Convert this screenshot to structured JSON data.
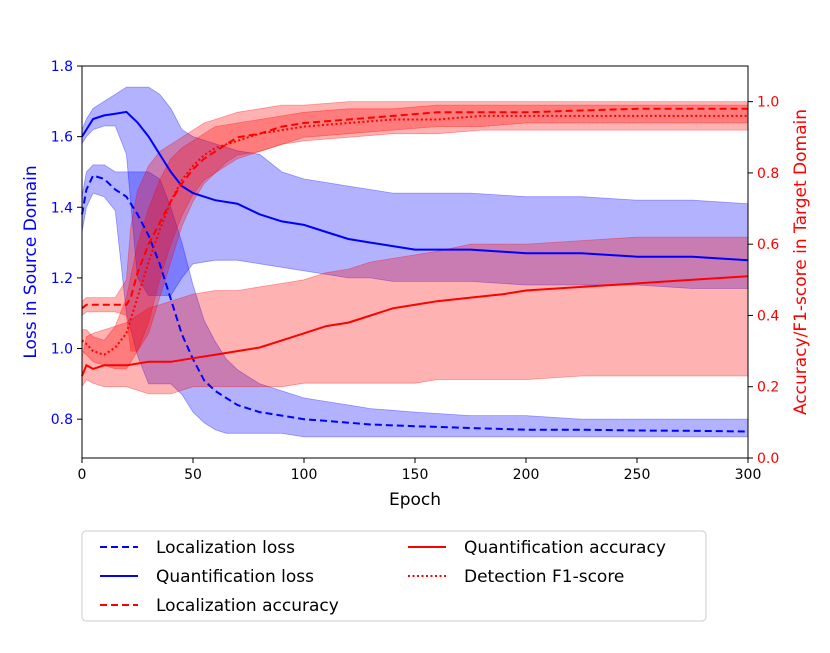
{
  "chart_data": {
    "type": "line",
    "xlabel": "Epoch",
    "ylabel_left": "Loss in Source Domain",
    "ylabel_right": "Accuracy/F1-score in Target Domain",
    "xlim": [
      0,
      300
    ],
    "ylim_left": [
      0.69,
      1.8
    ],
    "ylim_right": [
      0.0,
      1.1
    ],
    "x_ticks": [
      "0",
      "50",
      "100",
      "150",
      "200",
      "250",
      "300"
    ],
    "y_left_ticks": [
      "0.8",
      "1.0",
      "1.2",
      "1.4",
      "1.6",
      "1.8"
    ],
    "y_right_ticks": [
      "0.0",
      "0.2",
      "0.4",
      "0.6",
      "0.8",
      "1.0"
    ],
    "left_axis_color": "#0000ff",
    "right_axis_color": "#ff0000",
    "grid": false,
    "legend_position": "bottom (below plot), two columns",
    "series": [
      {
        "name": "Localization loss",
        "axis": "left",
        "color": "#0000ff",
        "style": "dashed",
        "x": [
          0,
          2,
          5,
          10,
          15,
          20,
          25,
          30,
          35,
          40,
          45,
          50,
          55,
          60,
          65,
          70,
          75,
          80,
          90,
          100,
          110,
          120,
          130,
          150,
          175,
          200,
          225,
          250,
          275,
          300
        ],
        "y": [
          1.38,
          1.45,
          1.49,
          1.48,
          1.45,
          1.43,
          1.38,
          1.32,
          1.24,
          1.14,
          1.04,
          0.97,
          0.91,
          0.88,
          0.86,
          0.84,
          0.83,
          0.82,
          0.81,
          0.8,
          0.795,
          0.79,
          0.785,
          0.78,
          0.775,
          0.77,
          0.77,
          0.768,
          0.767,
          0.765
        ],
        "band_low": [
          1.33,
          1.4,
          1.44,
          1.43,
          1.39,
          1.1,
          0.98,
          0.9,
          0.9,
          0.9,
          0.87,
          0.82,
          0.79,
          0.77,
          0.76,
          0.76,
          0.76,
          0.76,
          0.76,
          0.75,
          0.75,
          0.75,
          0.75,
          0.75,
          0.75,
          0.75,
          0.75,
          0.75,
          0.75,
          0.75
        ],
        "band_high": [
          1.43,
          1.5,
          1.52,
          1.52,
          1.5,
          1.5,
          1.5,
          1.5,
          1.48,
          1.4,
          1.3,
          1.18,
          1.08,
          1.02,
          0.97,
          0.94,
          0.92,
          0.9,
          0.88,
          0.86,
          0.85,
          0.84,
          0.83,
          0.82,
          0.81,
          0.81,
          0.8,
          0.8,
          0.8,
          0.8
        ]
      },
      {
        "name": "Quantification loss",
        "axis": "left",
        "color": "#0000ff",
        "style": "solid",
        "x": [
          0,
          2,
          5,
          10,
          15,
          20,
          25,
          30,
          35,
          40,
          45,
          50,
          60,
          70,
          80,
          90,
          100,
          110,
          120,
          130,
          140,
          150,
          175,
          200,
          225,
          250,
          275,
          300
        ],
        "y": [
          1.6,
          1.62,
          1.65,
          1.66,
          1.665,
          1.67,
          1.64,
          1.6,
          1.55,
          1.5,
          1.46,
          1.44,
          1.42,
          1.41,
          1.38,
          1.36,
          1.35,
          1.33,
          1.31,
          1.3,
          1.29,
          1.28,
          1.28,
          1.27,
          1.27,
          1.26,
          1.26,
          1.25
        ],
        "band_low": [
          1.58,
          1.6,
          1.62,
          1.63,
          1.63,
          1.55,
          1.2,
          1.15,
          1.15,
          1.15,
          1.2,
          1.24,
          1.25,
          1.25,
          1.24,
          1.23,
          1.22,
          1.21,
          1.2,
          1.2,
          1.19,
          1.19,
          1.19,
          1.18,
          1.18,
          1.18,
          1.17,
          1.17
        ],
        "band_high": [
          1.62,
          1.65,
          1.68,
          1.7,
          1.72,
          1.74,
          1.74,
          1.74,
          1.72,
          1.68,
          1.62,
          1.6,
          1.58,
          1.56,
          1.55,
          1.5,
          1.48,
          1.47,
          1.46,
          1.45,
          1.44,
          1.44,
          1.44,
          1.43,
          1.43,
          1.42,
          1.42,
          1.41
        ]
      },
      {
        "name": "Localization accuracy",
        "axis": "right",
        "color": "#ff0000",
        "style": "dashed",
        "x": [
          0,
          2,
          5,
          10,
          15,
          20,
          22,
          25,
          30,
          35,
          40,
          45,
          50,
          55,
          60,
          65,
          70,
          80,
          90,
          100,
          120,
          140,
          160,
          180,
          200,
          225,
          250,
          275,
          300
        ],
        "y": [
          0.42,
          0.43,
          0.43,
          0.43,
          0.43,
          0.43,
          0.45,
          0.52,
          0.6,
          0.66,
          0.72,
          0.77,
          0.81,
          0.84,
          0.86,
          0.88,
          0.9,
          0.91,
          0.93,
          0.94,
          0.95,
          0.96,
          0.97,
          0.97,
          0.97,
          0.975,
          0.98,
          0.98,
          0.98
        ],
        "band_low": [
          0.4,
          0.41,
          0.41,
          0.41,
          0.41,
          0.4,
          0.3,
          0.3,
          0.35,
          0.45,
          0.55,
          0.65,
          0.72,
          0.77,
          0.8,
          0.83,
          0.85,
          0.86,
          0.88,
          0.9,
          0.91,
          0.92,
          0.93,
          0.93,
          0.94,
          0.94,
          0.94,
          0.94,
          0.94
        ],
        "band_high": [
          0.44,
          0.45,
          0.45,
          0.45,
          0.45,
          0.5,
          0.65,
          0.75,
          0.82,
          0.86,
          0.88,
          0.9,
          0.92,
          0.94,
          0.95,
          0.96,
          0.97,
          0.98,
          0.99,
          0.99,
          1.0,
          1.0,
          1.0,
          1.0,
          1.0,
          1.0,
          1.0,
          1.0,
          1.0
        ]
      },
      {
        "name": "Quantification accuracy",
        "axis": "right",
        "color": "#ff0000",
        "style": "solid",
        "x": [
          0,
          2,
          5,
          10,
          20,
          30,
          40,
          50,
          60,
          70,
          80,
          90,
          100,
          110,
          120,
          130,
          140,
          150,
          160,
          175,
          190,
          200,
          225,
          250,
          275,
          300
        ],
        "y": [
          0.23,
          0.26,
          0.25,
          0.26,
          0.26,
          0.27,
          0.27,
          0.28,
          0.29,
          0.3,
          0.31,
          0.33,
          0.35,
          0.37,
          0.38,
          0.4,
          0.42,
          0.43,
          0.44,
          0.45,
          0.46,
          0.47,
          0.48,
          0.49,
          0.5,
          0.51
        ],
        "band_low": [
          0.2,
          0.22,
          0.21,
          0.2,
          0.2,
          0.18,
          0.18,
          0.2,
          0.2,
          0.2,
          0.2,
          0.2,
          0.21,
          0.21,
          0.21,
          0.21,
          0.21,
          0.21,
          0.22,
          0.22,
          0.22,
          0.22,
          0.23,
          0.23,
          0.23,
          0.23
        ],
        "band_high": [
          0.28,
          0.34,
          0.35,
          0.36,
          0.38,
          0.42,
          0.44,
          0.46,
          0.47,
          0.47,
          0.48,
          0.49,
          0.5,
          0.52,
          0.53,
          0.55,
          0.56,
          0.57,
          0.58,
          0.6,
          0.6,
          0.6,
          0.61,
          0.62,
          0.62,
          0.62
        ]
      },
      {
        "name": "Detection F1-score",
        "axis": "right",
        "color": "#ff0000",
        "style": "dotted",
        "x": [
          0,
          2,
          5,
          10,
          15,
          20,
          25,
          30,
          35,
          40,
          45,
          50,
          55,
          60,
          70,
          80,
          90,
          100,
          120,
          140,
          160,
          180,
          200,
          225,
          250,
          275,
          300
        ],
        "y": [
          0.33,
          0.32,
          0.3,
          0.29,
          0.31,
          0.35,
          0.45,
          0.55,
          0.64,
          0.72,
          0.78,
          0.82,
          0.85,
          0.87,
          0.89,
          0.91,
          0.92,
          0.93,
          0.94,
          0.95,
          0.95,
          0.96,
          0.96,
          0.96,
          0.96,
          0.96,
          0.96
        ],
        "band_low": [
          0.3,
          0.29,
          0.27,
          0.26,
          0.25,
          0.25,
          0.3,
          0.38,
          0.5,
          0.6,
          0.68,
          0.74,
          0.78,
          0.8,
          0.84,
          0.86,
          0.88,
          0.89,
          0.9,
          0.91,
          0.91,
          0.92,
          0.92,
          0.92,
          0.92,
          0.92,
          0.92
        ],
        "band_high": [
          0.36,
          0.36,
          0.34,
          0.33,
          0.37,
          0.45,
          0.6,
          0.7,
          0.78,
          0.84,
          0.87,
          0.89,
          0.91,
          0.93,
          0.94,
          0.95,
          0.96,
          0.97,
          0.98,
          0.98,
          0.99,
          0.99,
          0.99,
          0.99,
          0.99,
          0.99,
          0.99
        ]
      }
    ]
  }
}
